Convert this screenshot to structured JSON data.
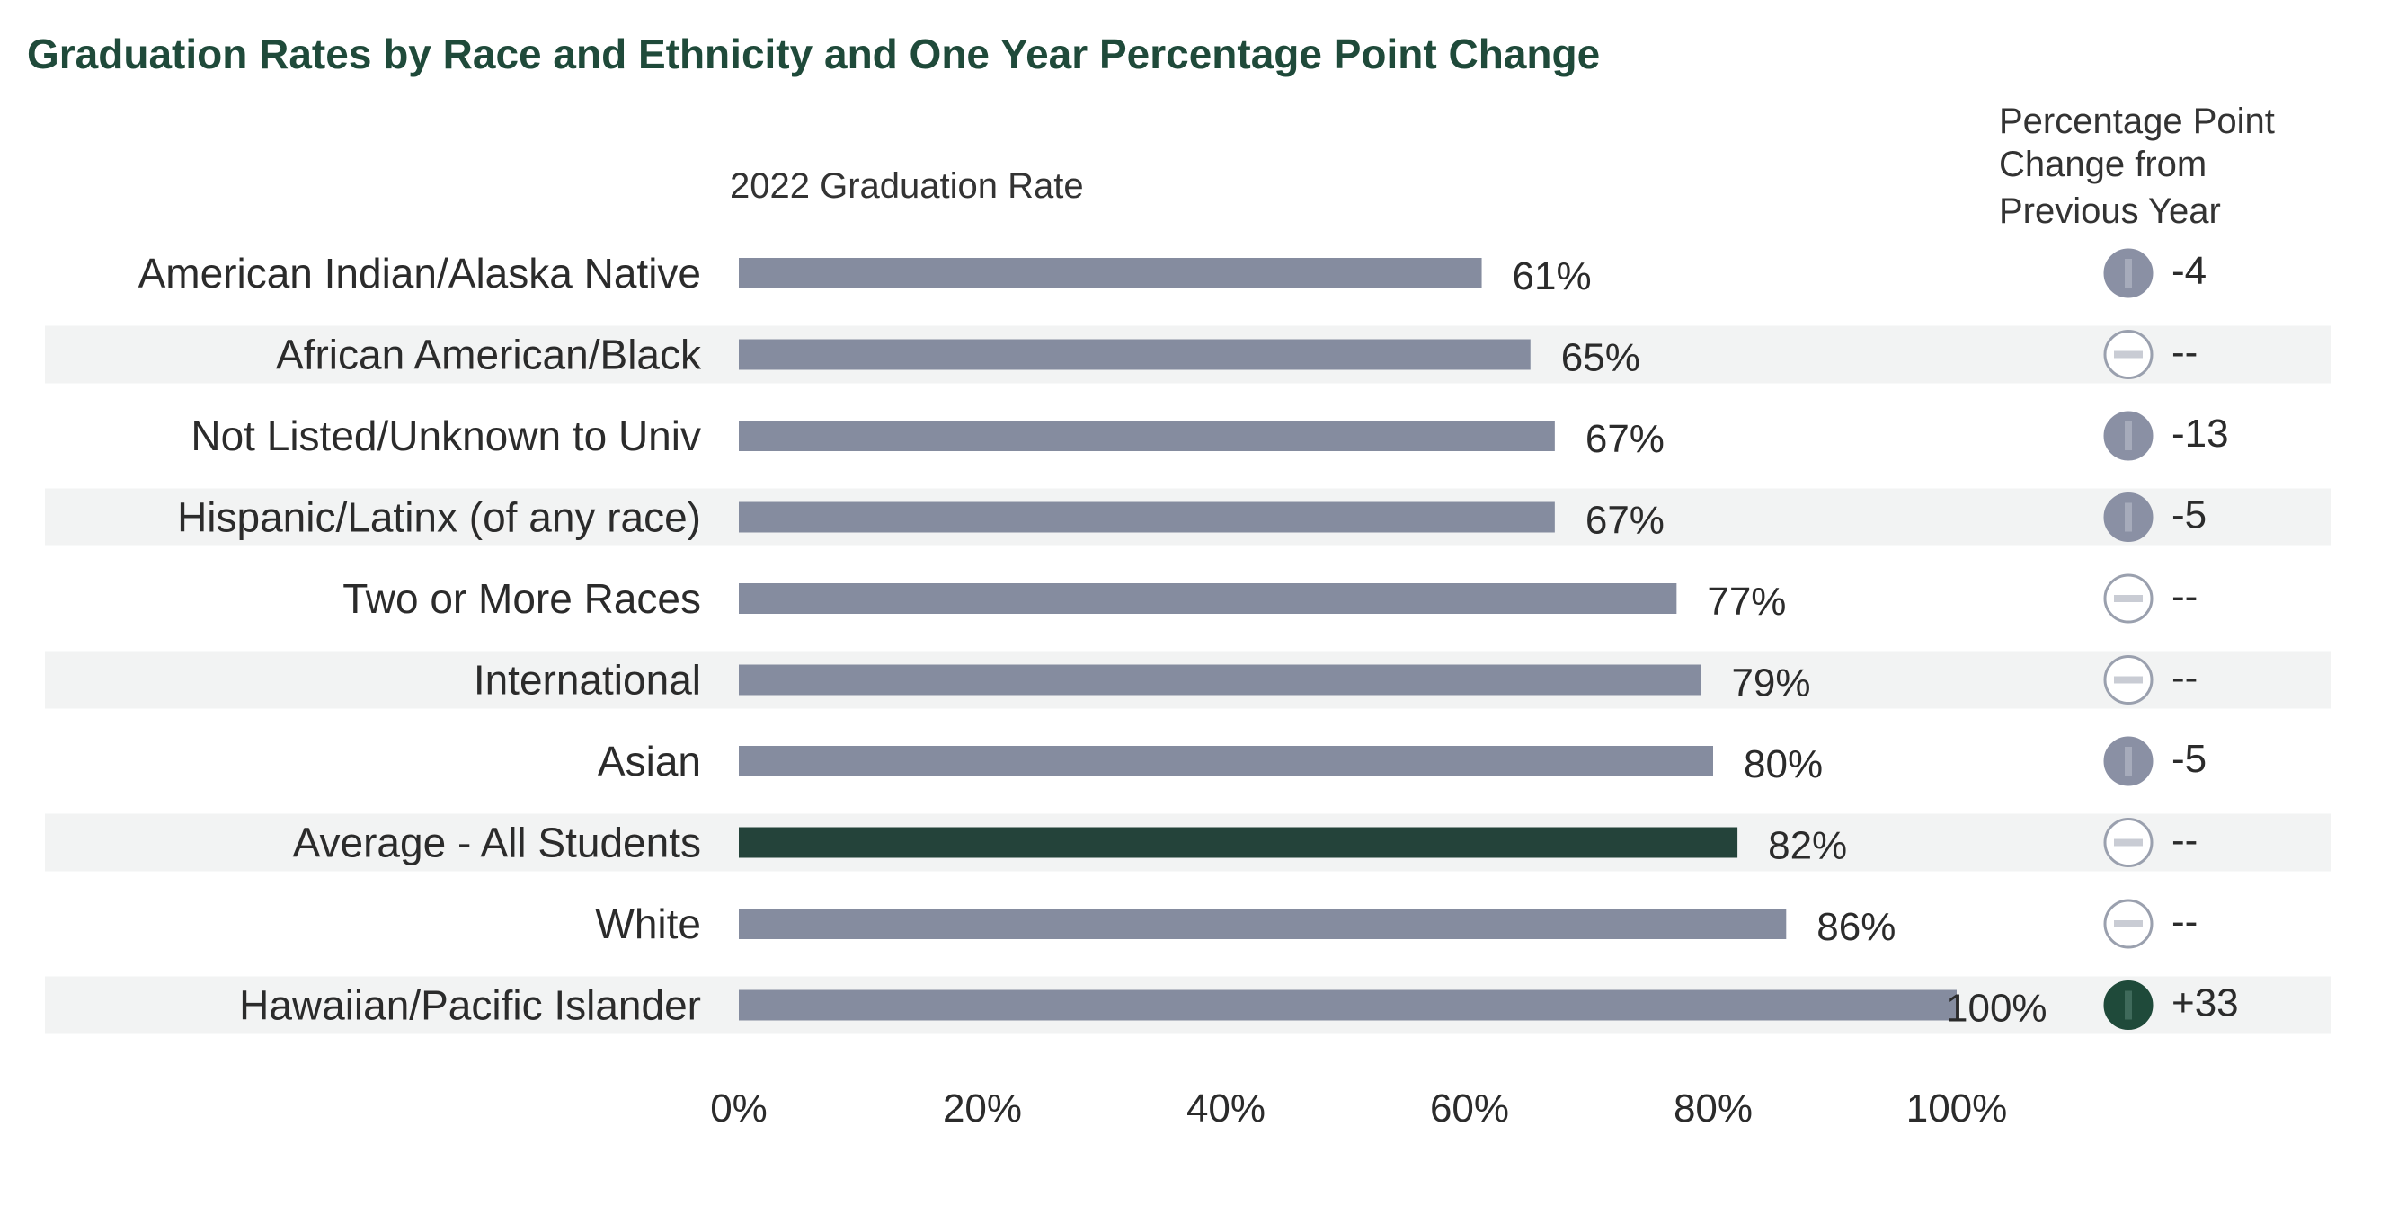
{
  "colors": {
    "title": "#1f4a3a",
    "bar": "#858c9f",
    "bar_highlight": "#24433a",
    "row_shade": "#f2f3f3",
    "indicator_down": "#8a90a4",
    "indicator_up": "#1f4a3a",
    "indicator_neutral_fill": "#ffffff",
    "indicator_neutral_stroke": "#9aa0ae"
  },
  "chart_data": {
    "type": "bar",
    "orientation": "horizontal",
    "title": "Graduation Rates by Race and Ethnicity and One Year Percentage Point Change",
    "subtitle": "2022 Graduation Rate",
    "change_header": [
      "Percentage Point",
      "Change from",
      "Previous Year"
    ],
    "categories": [
      "American Indian/Alaska Native",
      "African American/Black",
      "Not Listed/Unknown to Univ",
      "Hispanic/Latinx (of any race)",
      "Two or More Races",
      "International",
      "Asian",
      "Average - All Students",
      "White",
      "Hawaiian/Pacific Islander"
    ],
    "values": [
      61,
      65,
      67,
      67,
      77,
      79,
      80,
      82,
      86,
      100
    ],
    "value_labels": [
      "61%",
      "65%",
      "67%",
      "67%",
      "77%",
      "79%",
      "80%",
      "82%",
      "86%",
      "100%"
    ],
    "highlight": [
      false,
      false,
      false,
      false,
      false,
      false,
      false,
      true,
      false,
      false
    ],
    "shaded_rows": [
      false,
      true,
      false,
      true,
      false,
      true,
      false,
      true,
      false,
      true
    ],
    "changes": [
      "-4",
      "--",
      "-13",
      "-5",
      "--",
      "--",
      "-5",
      "--",
      "--",
      "+33"
    ],
    "change_direction": [
      "down",
      "neutral",
      "down",
      "down",
      "neutral",
      "neutral",
      "down",
      "neutral",
      "neutral",
      "up"
    ],
    "xlim": [
      0,
      100
    ],
    "xticks": [
      0,
      20,
      40,
      60,
      80,
      100
    ],
    "xtick_labels": [
      "0%",
      "20%",
      "40%",
      "60%",
      "80%",
      "100%"
    ],
    "grid": false,
    "legend": "none"
  }
}
